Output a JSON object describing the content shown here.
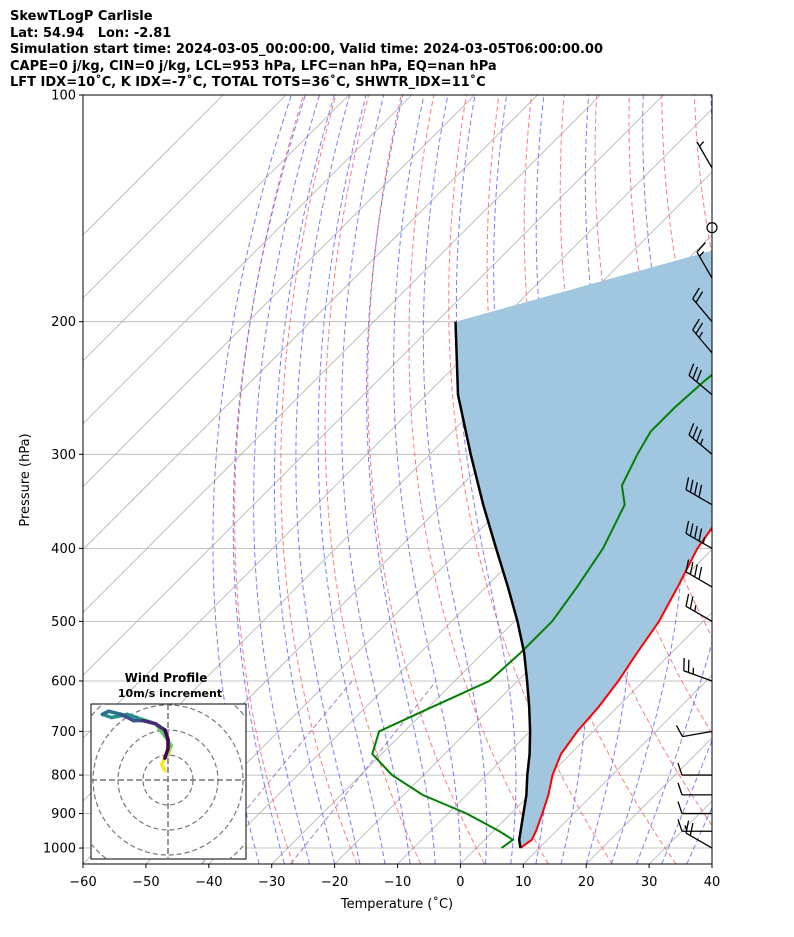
{
  "header": {
    "lines": [
      "SkewTLogP Carlisle",
      "Lat: 54.94   Lon: -2.81",
      "Simulation start time: 2024-03-05_00:00:00, Valid time: 2024-03-05T06:00:00.00",
      "CAPE=0 j/kg, CIN=0 j/kg, LCL=953 hPa, LFC=nan hPa, EQ=nan hPa",
      "LFT IDX=10˚C, K IDX=-7˚C, TOTAL TOTS=36˚C, SHWTR_IDX=11˚C"
    ]
  },
  "chart_data": [
    {
      "type": "line",
      "subtype": "skew-t log-p",
      "xlabel": "Temperature (˚C)",
      "ylabel": "Pressure (hPa)",
      "xlim": [
        -60,
        40
      ],
      "ylim": [
        1050,
        100
      ],
      "y_scale": "log",
      "skew_deg": 45,
      "xticks": [
        -60,
        -50,
        -40,
        -30,
        -20,
        -10,
        0,
        10,
        20,
        30,
        40
      ],
      "yticks": [
        100,
        200,
        300,
        400,
        500,
        600,
        700,
        800,
        900,
        1000
      ],
      "grid": true,
      "colors": {
        "temperature": "#ff0000",
        "dewpoint": "#008000",
        "parcel": "#000000",
        "shade": "#a1c6e0",
        "dry_adiabats": "#ff6464",
        "moist_adiabats": "#6464ff",
        "mixing_ratio": "#9b59b6",
        "isotherms": "#b0b0b0"
      },
      "series": [
        {
          "key": "temperature",
          "x": [
            7.0,
            7.5,
            6.8,
            5.0,
            3.0,
            0.5,
            -1.5,
            -2.5,
            -3.0,
            -4.0,
            -5.5,
            -7.0,
            -9.5,
            -12.5,
            -14.5,
            -15.5,
            -16.0,
            -15.5,
            -14.5,
            -13.0,
            -11.0,
            -8.0,
            -5.0,
            -2.0,
            -0.5,
            1.5,
            3.0,
            3.5,
            4.5,
            7.0
          ],
          "y": [
            1000,
            975,
            950,
            900,
            850,
            800,
            750,
            700,
            650,
            600,
            550,
            500,
            450,
            400,
            350,
            330,
            300,
            280,
            260,
            240,
            220,
            200,
            180,
            160,
            150,
            140,
            130,
            120,
            110,
            100
          ]
        },
        {
          "key": "dewpoint",
          "x": [
            4.0,
            4.5,
            1.0,
            -7.0,
            -17.0,
            -25.0,
            -31.5,
            -34.0,
            -29.5,
            -24.5,
            -24.0,
            -24.0,
            -25.5,
            -27.5,
            -31.0,
            -34.5,
            -37.0,
            -38.5,
            -38.5,
            -38.0,
            -37.0,
            -34.0,
            -40.0,
            -46.0,
            -41.0,
            -35.5,
            -31.0,
            -26.5,
            -21.5
          ],
          "y": [
            1000,
            975,
            950,
            900,
            850,
            800,
            750,
            700,
            650,
            600,
            550,
            500,
            450,
            400,
            350,
            330,
            300,
            280,
            260,
            240,
            220,
            200,
            180,
            170,
            160,
            150,
            140,
            125,
            100
          ]
        },
        {
          "key": "parcel",
          "x": [
            7.0,
            5.5,
            4.5,
            2.0,
            -0.5,
            -3.5,
            -6.5,
            -10.0,
            -14.0,
            -18.5,
            -23.5,
            -29.5,
            -36.5,
            -44.5,
            -53.5,
            -63.5,
            -75.0,
            -87.0
          ],
          "y": [
            1000,
            975,
            953,
            900,
            850,
            800,
            750,
            700,
            650,
            600,
            550,
            500,
            450,
            400,
            350,
            300,
            250,
            200
          ]
        }
      ],
      "wind_barbs": {
        "pressure": [
          1000,
          950,
          900,
          850,
          800,
          700,
          600,
          500,
          450,
          400,
          350,
          300,
          250,
          220,
          200,
          175,
          150,
          125
        ],
        "speed_kt": [
          20,
          15,
          10,
          10,
          10,
          10,
          25,
          25,
          40,
          45,
          40,
          35,
          30,
          25,
          20,
          15,
          0,
          5
        ],
        "direction_deg": [
          300,
          270,
          270,
          270,
          270,
          260,
          290,
          300,
          300,
          300,
          300,
          310,
          310,
          320,
          320,
          330,
          0,
          330
        ]
      }
    },
    {
      "type": "line",
      "subtype": "hodograph",
      "title": "Wind Profile",
      "subtitle": "10m/s increment",
      "rings": 4,
      "u": [
        -1,
        -2,
        -1,
        0,
        1,
        -1,
        -4,
        -7,
        -10,
        -13,
        -18,
        -21,
        -19,
        -15,
        -11,
        -8,
        -4,
        -1,
        0,
        0,
        -1
      ],
      "v": [
        3,
        5,
        7,
        8,
        11,
        14,
        18,
        19,
        20,
        21,
        20,
        21,
        22,
        21,
        19,
        19,
        18,
        16,
        13,
        10,
        7
      ]
    }
  ]
}
